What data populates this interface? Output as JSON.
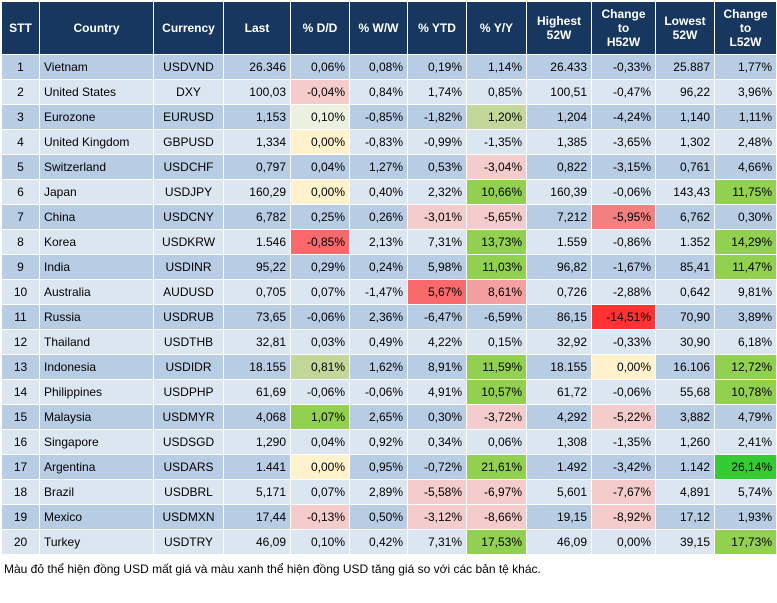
{
  "table": {
    "header": [
      "STT",
      "Country",
      "Currency",
      "Last",
      "% D/D",
      "% W/W",
      "% YTD",
      "% Y/Y",
      "Highest\n52W",
      "Change\nto\nH52W",
      "Lowest\n52W",
      "Change\nto\nL52W"
    ],
    "rows": [
      [
        "1",
        "Vietnam",
        "USDVND",
        "26.346",
        "0,06%",
        "0,08%",
        "0,19%",
        "1,14%",
        "26.433",
        "-0,33%",
        "25.887",
        "1,77%"
      ],
      [
        "2",
        "United States",
        "DXY",
        "100,03",
        "-0,04%",
        "0,84%",
        "1,74%",
        "0,85%",
        "100,51",
        "-0,47%",
        "96,22",
        "3,96%"
      ],
      [
        "3",
        "Eurozone",
        "EURUSD",
        "1,153",
        "0,10%",
        "-0,85%",
        "-1,82%",
        "1,20%",
        "1,204",
        "-4,24%",
        "1,140",
        "1,11%"
      ],
      [
        "4",
        "United Kingdom",
        "GBPUSD",
        "1,334",
        "0,00%",
        "-0,83%",
        "-0,99%",
        "-1,35%",
        "1,385",
        "-3,65%",
        "1,302",
        "2,48%"
      ],
      [
        "5",
        "Switzerland",
        "USDCHF",
        "0,797",
        "0,04%",
        "1,27%",
        "0,53%",
        "-3,04%",
        "0,822",
        "-3,15%",
        "0,761",
        "4,66%"
      ],
      [
        "6",
        "Japan",
        "USDJPY",
        "160,29",
        "0,00%",
        "0,40%",
        "2,32%",
        "10,66%",
        "160,39",
        "-0,06%",
        "143,43",
        "11,75%"
      ],
      [
        "7",
        "China",
        "USDCNY",
        "6,782",
        "0,25%",
        "0,26%",
        "-3,01%",
        "-5,65%",
        "7,212",
        "-5,95%",
        "6,762",
        "0,30%"
      ],
      [
        "8",
        "Korea",
        "USDKRW",
        "1.546",
        "-0,85%",
        "2,13%",
        "7,31%",
        "13,73%",
        "1.559",
        "-0,86%",
        "1.352",
        "14,29%"
      ],
      [
        "9",
        "India",
        "USDINR",
        "95,22",
        "0,29%",
        "0,24%",
        "5,98%",
        "11,03%",
        "96,82",
        "-1,67%",
        "85,41",
        "11,47%"
      ],
      [
        "10",
        "Australia",
        "AUDUSD",
        "0,705",
        "0,07%",
        "-1,47%",
        "5,67%",
        "8,61%",
        "0,726",
        "-2,88%",
        "0,642",
        "9,81%"
      ],
      [
        "11",
        "Russia",
        "USDRUB",
        "73,65",
        "-0,06%",
        "2,36%",
        "-6,47%",
        "-6,59%",
        "86,15",
        "-14,51%",
        "70,90",
        "3,89%"
      ],
      [
        "12",
        "Thailand",
        "USDTHB",
        "32,81",
        "0,03%",
        "0,49%",
        "4,22%",
        "0,15%",
        "32,92",
        "-0,33%",
        "30,90",
        "6,18%"
      ],
      [
        "13",
        "Indonesia",
        "USDIDR",
        "18.155",
        "0,81%",
        "1,62%",
        "8,91%",
        "11,59%",
        "18.155",
        "0,00%",
        "16.106",
        "12,72%"
      ],
      [
        "14",
        "Philippines",
        "USDPHP",
        "61,69",
        "-0,06%",
        "-0,06%",
        "4,91%",
        "10,57%",
        "61,72",
        "-0,06%",
        "55,68",
        "10,78%"
      ],
      [
        "15",
        "Malaysia",
        "USDMYR",
        "4,068",
        "1,07%",
        "2,65%",
        "0,30%",
        "-3,72%",
        "4,292",
        "-5,22%",
        "3,882",
        "4,79%"
      ],
      [
        "16",
        "Singapore",
        "USDSGD",
        "1,290",
        "0,04%",
        "0,92%",
        "0,34%",
        "0,06%",
        "1,308",
        "-1,35%",
        "1,260",
        "2,41%"
      ],
      [
        "17",
        "Argentina",
        "USDARS",
        "1.441",
        "0,00%",
        "0,95%",
        "-0,72%",
        "21,61%",
        "1.492",
        "-3,42%",
        "1.142",
        "26,14%"
      ],
      [
        "18",
        "Brazil",
        "USDBRL",
        "5,171",
        "0,07%",
        "2,89%",
        "-5,58%",
        "-6,97%",
        "5,601",
        "-7,67%",
        "4,891",
        "5,74%"
      ],
      [
        "19",
        "Mexico",
        "USDMXN",
        "17,44",
        "-0,13%",
        "0,50%",
        "-3,12%",
        "-8,66%",
        "19,15",
        "-8,92%",
        "17,12",
        "1,93%"
      ],
      [
        "20",
        "Turkey",
        "USDTRY",
        "46,09",
        "0,10%",
        "0,42%",
        "7,31%",
        "17,53%",
        "46,09",
        "0,00%",
        "39,15",
        "17,73%"
      ]
    ],
    "cell_colors": [
      [
        null,
        null,
        null,
        null,
        null,
        null,
        null,
        null
      ],
      [
        "#f4cccc",
        null,
        null,
        null,
        null,
        null,
        null,
        null
      ],
      [
        "#ebf1de",
        null,
        null,
        "#c4d79b",
        null,
        null,
        null,
        null
      ],
      [
        "#fff2cc",
        null,
        null,
        null,
        null,
        null,
        null,
        null
      ],
      [
        null,
        null,
        null,
        "#f4cccc",
        null,
        null,
        null,
        null
      ],
      [
        "#fff2cc",
        null,
        null,
        "#92d050",
        null,
        null,
        null,
        "#92d050"
      ],
      [
        null,
        null,
        "#f4cccc",
        "#f4cccc",
        null,
        "#f28080",
        null,
        null
      ],
      [
        "#f8696b",
        null,
        null,
        "#92d050",
        null,
        null,
        null,
        "#92d050"
      ],
      [
        null,
        null,
        null,
        "#92d050",
        null,
        null,
        null,
        "#92d050"
      ],
      [
        null,
        null,
        "#f8696b",
        "#f4a0a0",
        null,
        null,
        null,
        null
      ],
      [
        null,
        null,
        null,
        null,
        null,
        "#ff3333",
        null,
        null
      ],
      [
        null,
        null,
        null,
        null,
        null,
        null,
        null,
        null
      ],
      [
        "#c4d79b",
        null,
        null,
        "#92d050",
        null,
        "#fff2cc",
        null,
        "#92d050"
      ],
      [
        null,
        null,
        null,
        "#92d050",
        null,
        null,
        null,
        "#92d050"
      ],
      [
        "#92d050",
        null,
        null,
        "#f4cccc",
        null,
        "#f4cccc",
        null,
        null
      ],
      [
        null,
        null,
        null,
        null,
        null,
        null,
        null,
        null
      ],
      [
        "#fff2cc",
        null,
        null,
        "#92d050",
        null,
        null,
        null,
        "#33cc33"
      ],
      [
        null,
        null,
        "#f4cccc",
        "#f4cccc",
        null,
        "#f4cccc",
        null,
        null
      ],
      [
        "#f4cccc",
        null,
        "#f4cccc",
        "#f4cccc",
        null,
        "#f4cccc",
        null,
        null
      ],
      [
        null,
        null,
        null,
        "#92d050",
        null,
        null,
        null,
        "#92d050"
      ]
    ]
  },
  "footnote": "Màu đỏ thể hiện đồng USD mất giá và màu xanh thể hiện đồng USD tăng giá so với các bản tệ khác."
}
